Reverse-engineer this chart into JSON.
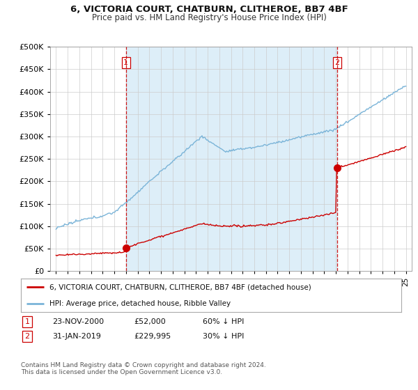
{
  "title": "6, VICTORIA COURT, CHATBURN, CLITHEROE, BB7 4BF",
  "subtitle": "Price paid vs. HM Land Registry's House Price Index (HPI)",
  "legend_line1": "6, VICTORIA COURT, CHATBURN, CLITHEROE, BB7 4BF (detached house)",
  "legend_line2": "HPI: Average price, detached house, Ribble Valley",
  "footnote": "Contains HM Land Registry data © Crown copyright and database right 2024.\nThis data is licensed under the Open Government Licence v3.0.",
  "table_rows": [
    {
      "num": "1",
      "date": "23-NOV-2000",
      "price": "£52,000",
      "pct": "60% ↓ HPI"
    },
    {
      "num": "2",
      "date": "31-JAN-2019",
      "price": "£229,995",
      "pct": "30% ↓ HPI"
    }
  ],
  "sale1_year": 2001.0,
  "sale1_price": 52000,
  "sale2_year": 2019.1,
  "sale2_price": 229995,
  "hpi_color": "#7ab4d8",
  "hpi_fill_color": "#ddeef8",
  "price_color": "#cc0000",
  "marker_color": "#cc0000",
  "vline_color": "#cc0000",
  "background_color": "#ffffff",
  "grid_color": "#cccccc",
  "ylim_max": 500000,
  "ylim_min": 0,
  "xlim_min": 1994.5,
  "xlim_max": 2025.5
}
